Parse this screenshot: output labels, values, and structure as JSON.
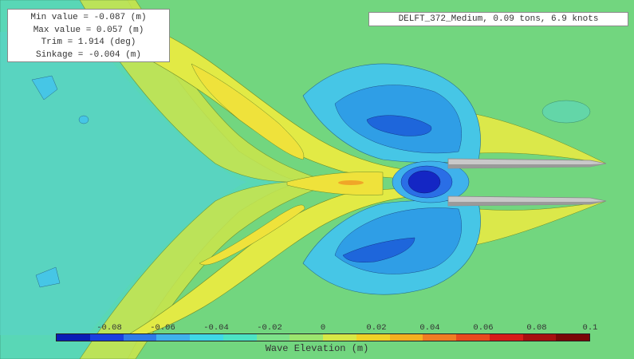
{
  "stats": {
    "min_line": "Min value = -0.087 (m)",
    "max_line": "Max value = 0.057 (m)",
    "trim_line": "Trim = 1.914 (deg)",
    "sinkage_line": "Sinkage = -0.004 (m)"
  },
  "case_label": "DELFT_372_Medium, 0.09 tons, 6.9 knots",
  "colorbar": {
    "title": "Wave Elevation (m)",
    "min": -0.1,
    "max": 0.1,
    "ticks": [
      "-0.08",
      "-0.06",
      "-0.04",
      "-0.02",
      "0",
      "0.02",
      "0.04",
      "0.06",
      "0.08",
      "0.1"
    ],
    "colors": [
      "#0a1cb5",
      "#1a3fe0",
      "#2f7be8",
      "#3fb2ec",
      "#3fd8e6",
      "#4ce3c4",
      "#7ee28a",
      "#9be56e",
      "#d6e846",
      "#f0d227",
      "#f4b01f",
      "#f07d22",
      "#e94a1d",
      "#d61d18",
      "#a70f0f",
      "#7a0707"
    ]
  },
  "colors": {
    "background_level": "#6fd47c",
    "hull": "#c9c9c9"
  }
}
